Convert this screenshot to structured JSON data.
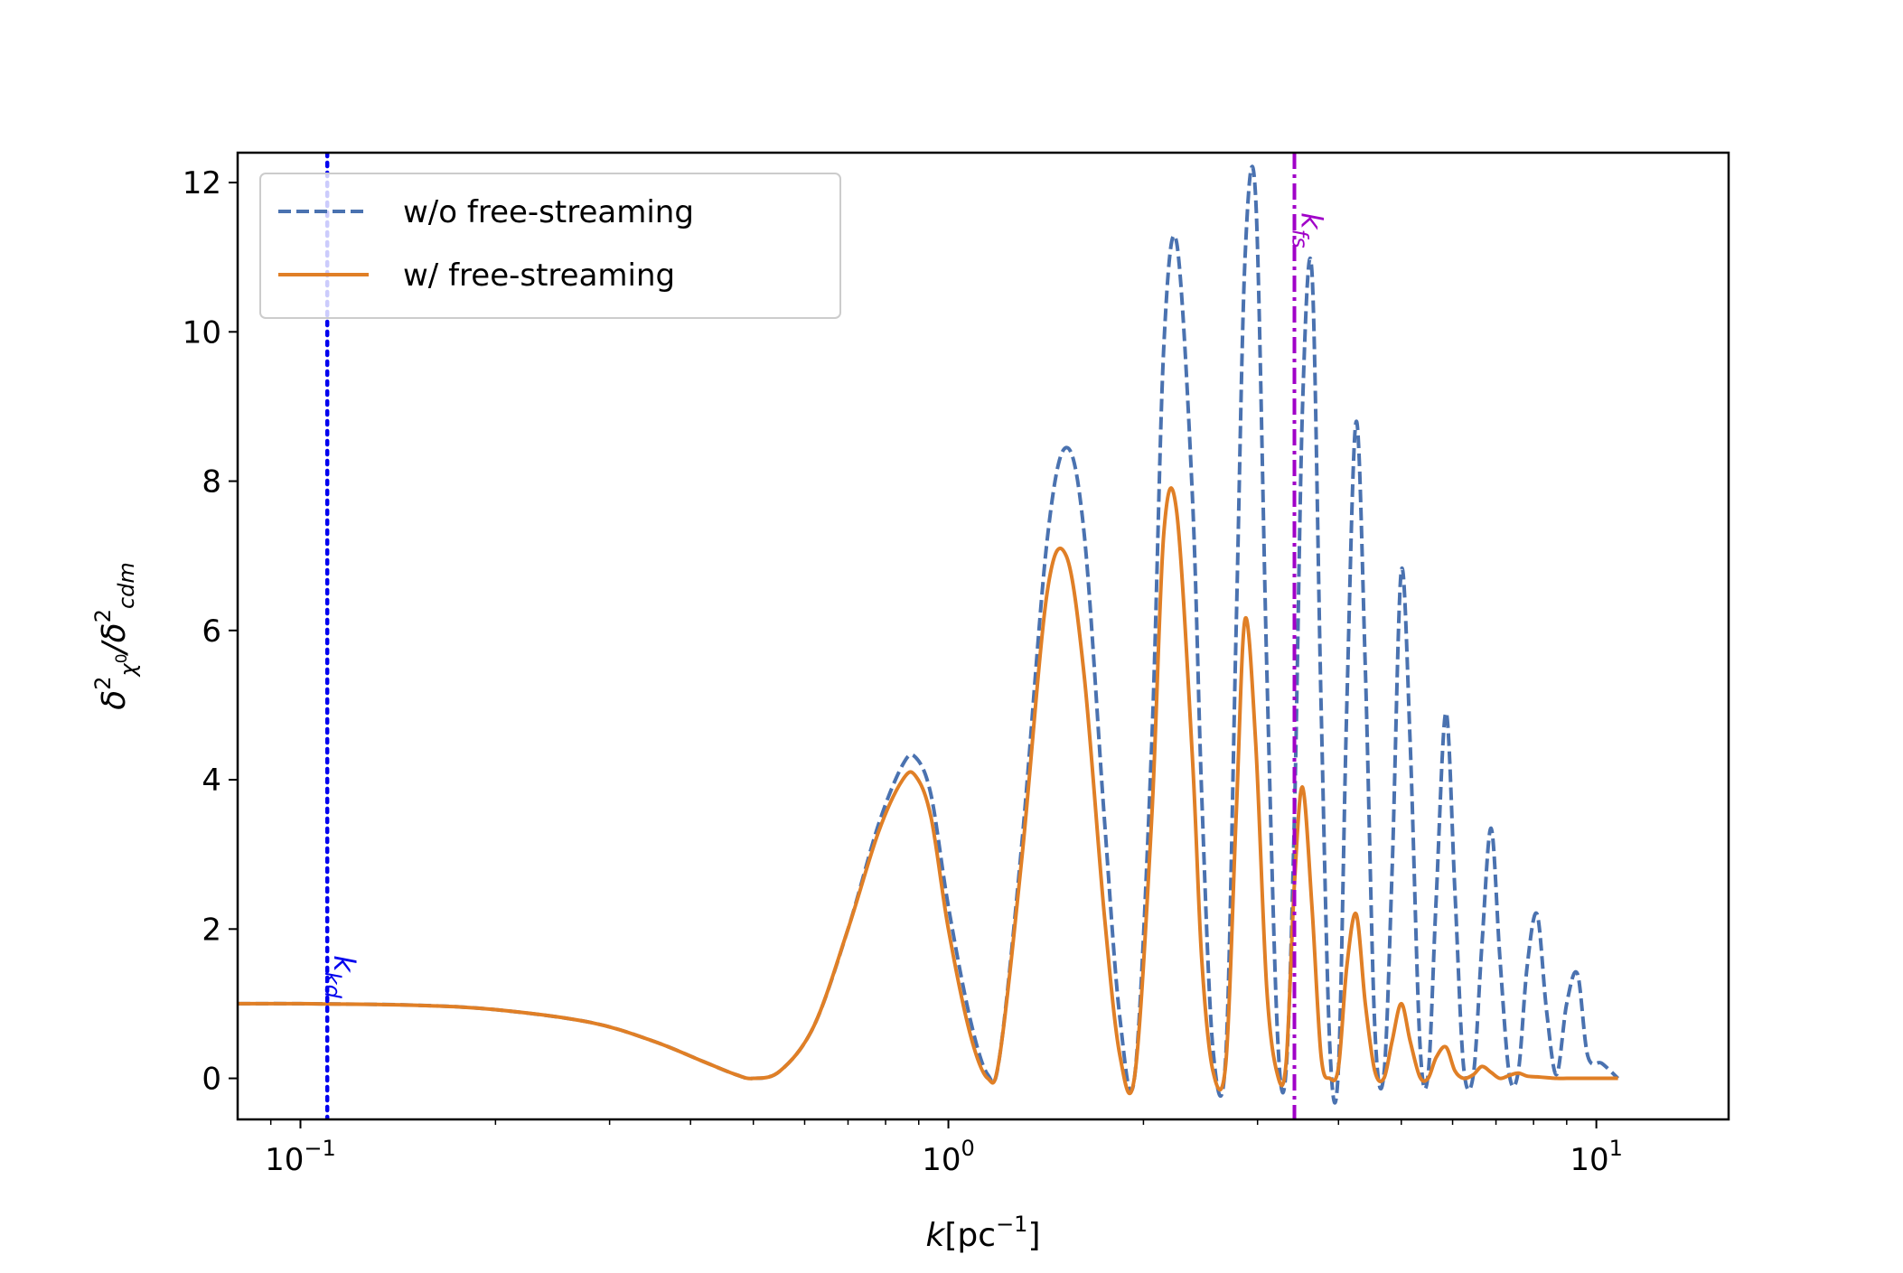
{
  "chart_data": {
    "type": "line",
    "xscale": "log",
    "xlabel": "k[pc⁻¹]",
    "ylabel": "δ²χ⁰/δ²cdm",
    "xlim": [
      0.08,
      16
    ],
    "ylim": [
      -0.55,
      12.4
    ],
    "grid": false,
    "legend_position": "top-left",
    "yticks": [
      {
        "value": 0,
        "label": "0"
      },
      {
        "value": 2,
        "label": "2"
      },
      {
        "value": 4,
        "label": "4"
      },
      {
        "value": 6,
        "label": "6"
      },
      {
        "value": 8,
        "label": "8"
      },
      {
        "value": 10,
        "label": "10"
      },
      {
        "value": 12,
        "label": "12"
      }
    ],
    "xticks": [
      {
        "value": 0.1,
        "base": "10",
        "exp": "−1"
      },
      {
        "value": 1,
        "base": "10",
        "exp": "0"
      },
      {
        "value": 10,
        "base": "10",
        "exp": "1"
      }
    ],
    "series": [
      {
        "name": "w/o free-streaming",
        "color": "#4a72b0",
        "style": "dashed",
        "x": [
          0.08,
          0.1,
          0.15,
          0.2,
          0.28,
          0.35,
          0.42,
          0.47,
          0.5,
          0.55,
          0.62,
          0.7,
          0.78,
          0.85,
          0.89,
          0.94,
          1.0,
          1.08,
          1.15,
          1.2,
          1.3,
          1.42,
          1.52,
          1.62,
          1.74,
          1.84,
          1.94,
          2.06,
          2.15,
          2.25,
          2.38,
          2.46,
          2.56,
          2.68,
          2.78,
          2.87,
          2.98,
          3.1,
          3.22,
          3.32,
          3.42,
          3.52,
          3.64,
          3.76,
          3.88,
          4.0,
          4.12,
          4.26,
          4.4,
          4.55,
          4.7,
          4.84,
          5.0,
          5.16,
          5.34,
          5.5,
          5.66,
          5.86,
          6.05,
          6.24,
          6.46,
          6.66,
          6.88,
          7.1,
          7.34,
          7.58,
          7.82,
          8.1,
          8.38,
          8.68,
          9.0,
          9.35,
          9.7,
          10.2,
          10.8
        ],
        "y": [
          1.0,
          1.0,
          0.98,
          0.92,
          0.75,
          0.5,
          0.22,
          0.05,
          0.0,
          0.1,
          0.7,
          2.0,
          3.4,
          4.2,
          4.3,
          3.8,
          2.3,
          0.8,
          0.05,
          0.3,
          3.2,
          7.2,
          8.45,
          7.3,
          3.5,
          0.8,
          0.05,
          4.5,
          9.8,
          11.2,
          7.8,
          3.8,
          0.4,
          0.3,
          6.0,
          11.0,
          11.8,
          5.5,
          0.6,
          0.1,
          3.5,
          9.0,
          10.8,
          5.0,
          0.4,
          0.15,
          5.0,
          8.8,
          5.5,
          0.7,
          0.05,
          2.8,
          6.8,
          4.5,
          0.5,
          0.05,
          2.4,
          4.9,
          2.5,
          0.15,
          0.05,
          1.8,
          3.35,
          1.6,
          0.05,
          0.1,
          1.5,
          2.2,
          0.9,
          0.05,
          1.0,
          1.4,
          0.3,
          0.2,
          0.0
        ]
      },
      {
        "name": "w/ free-streaming",
        "color": "#e07f26",
        "style": "solid",
        "x": [
          0.08,
          0.1,
          0.15,
          0.2,
          0.28,
          0.35,
          0.42,
          0.47,
          0.5,
          0.55,
          0.62,
          0.7,
          0.78,
          0.85,
          0.89,
          0.94,
          1.0,
          1.08,
          1.15,
          1.2,
          1.3,
          1.42,
          1.52,
          1.62,
          1.74,
          1.84,
          1.94,
          2.06,
          2.15,
          2.25,
          2.38,
          2.46,
          2.56,
          2.68,
          2.78,
          2.87,
          2.98,
          3.1,
          3.22,
          3.32,
          3.42,
          3.52,
          3.64,
          3.76,
          3.88,
          4.0,
          4.12,
          4.26,
          4.4,
          4.55,
          4.7,
          4.84,
          5.0,
          5.16,
          5.34,
          5.5,
          5.66,
          5.86,
          6.05,
          6.24,
          6.46,
          6.66,
          6.88,
          7.1,
          7.34,
          7.58,
          7.82,
          8.1,
          8.38,
          8.68,
          9.0,
          9.35,
          9.7,
          10.2,
          10.8
        ],
        "y": [
          1.0,
          1.0,
          0.98,
          0.92,
          0.75,
          0.5,
          0.22,
          0.05,
          0.0,
          0.1,
          0.7,
          2.0,
          3.3,
          4.0,
          4.05,
          3.5,
          2.0,
          0.6,
          0.0,
          0.3,
          3.0,
          6.5,
          7.0,
          5.4,
          2.2,
          0.3,
          0.05,
          3.5,
          7.3,
          7.6,
          4.3,
          1.6,
          0.1,
          0.2,
          3.5,
          6.15,
          4.5,
          1.2,
          0.05,
          0.2,
          2.6,
          3.9,
          2.3,
          0.3,
          0.0,
          0.15,
          1.5,
          2.2,
          1.0,
          0.1,
          0.0,
          0.5,
          1.0,
          0.5,
          0.02,
          0.0,
          0.28,
          0.42,
          0.1,
          0.0,
          0.05,
          0.16,
          0.08,
          0.0,
          0.04,
          0.07,
          0.03,
          0.02,
          0.01,
          0.0,
          0.0,
          0.0,
          0.0,
          0.0,
          0.0
        ]
      }
    ],
    "vlines": [
      {
        "name": "k_kd",
        "x": 0.11,
        "color": "#0000ee",
        "style": "dotted",
        "label_main": "k",
        "label_sub": "kd"
      },
      {
        "name": "k_fs",
        "x": 3.42,
        "color": "#a000c8",
        "style": "dashdot",
        "label_main": "k",
        "label_sub": "fs"
      }
    ]
  }
}
